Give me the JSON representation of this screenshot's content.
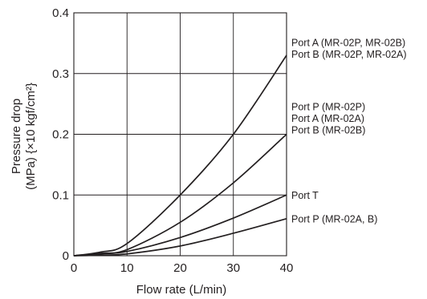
{
  "chart_data": {
    "type": "line",
    "title": "",
    "xlabel": "Flow rate (L/min)",
    "ylabel": [
      "Pressure drop",
      "(MPa) {×10 kgf/cm²}"
    ],
    "xlim": [
      0,
      40
    ],
    "ylim": [
      0,
      0.4
    ],
    "x_ticks": [
      "0",
      "10",
      "20",
      "30",
      "40"
    ],
    "y_ticks": [
      "0",
      "0.1",
      "0.2",
      "0.3",
      "0.4"
    ],
    "grid": true,
    "legend": "right (labels at line ends)",
    "series": [
      {
        "labels": [
          "Port A (MR-02P, MR-02B)",
          "Port B (MR-02P, MR-02A)"
        ],
        "x": [
          0,
          5,
          10,
          20,
          30,
          40
        ],
        "y": [
          0,
          0.006,
          0.02,
          0.1,
          0.2,
          0.33
        ]
      },
      {
        "labels": [
          "Port P (MR-02P)",
          "Port A (MR-02A)",
          "Port B (MR-02B)"
        ],
        "x": [
          0,
          5,
          10,
          20,
          30,
          40
        ],
        "y": [
          0,
          0.004,
          0.01,
          0.055,
          0.12,
          0.2
        ]
      },
      {
        "labels": [
          "Port T"
        ],
        "x": [
          0,
          5,
          10,
          20,
          30,
          40
        ],
        "y": [
          0,
          0.003,
          0.007,
          0.03,
          0.062,
          0.1
        ]
      },
      {
        "labels": [
          "Port P (MR-02A, B)"
        ],
        "x": [
          0,
          5,
          10,
          20,
          30,
          40
        ],
        "y": [
          0,
          0.001,
          0.003,
          0.016,
          0.037,
          0.061
        ]
      }
    ]
  }
}
